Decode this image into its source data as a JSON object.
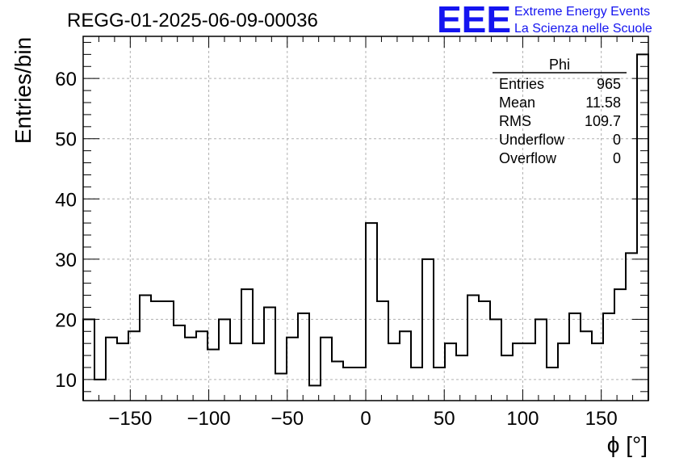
{
  "title": "REGG-01-2025-06-09-00036",
  "logo": {
    "mark": "EEE",
    "line1": "Extreme Energy Events",
    "line2": "La Scienza nelle Scuole",
    "color": "#1414f0"
  },
  "stats": {
    "name": "Phi",
    "rows": [
      {
        "label": "Entries",
        "value": "965"
      },
      {
        "label": "Mean",
        "value": "11.58"
      },
      {
        "label": "RMS",
        "value": "109.7"
      },
      {
        "label": "Underflow",
        "value": "0"
      },
      {
        "label": "Overflow",
        "value": "0"
      }
    ]
  },
  "chart_data": {
    "type": "bar",
    "style": "step-histogram",
    "xlabel": "ϕ [°]",
    "ylabel": "Entries/bin",
    "xlim": [
      -180,
      180
    ],
    "ylim": [
      6.5,
      67
    ],
    "bin_width": 7.2,
    "xticks": [
      -150,
      -100,
      -50,
      0,
      50,
      100,
      150
    ],
    "yticks": [
      10,
      20,
      30,
      40,
      50,
      60
    ],
    "grid": true,
    "values": [
      20,
      10,
      17,
      16,
      18,
      24,
      23,
      23,
      19,
      17,
      18,
      15,
      20,
      16,
      25,
      16,
      22,
      11,
      17,
      21,
      9,
      17,
      13,
      12,
      12,
      36,
      23,
      16,
      18,
      12,
      30,
      12,
      16,
      14,
      24,
      23,
      20,
      14,
      16,
      16,
      20,
      12,
      16,
      21,
      18,
      16,
      21,
      25,
      31,
      64
    ]
  }
}
